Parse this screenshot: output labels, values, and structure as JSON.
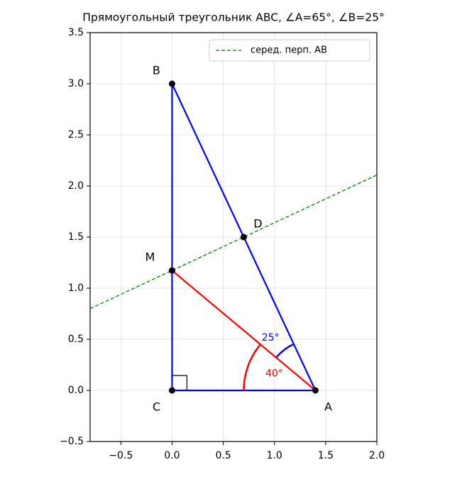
{
  "chart_data": {
    "type": "geometry",
    "title": "Прямоугольный треугольник ABC, ∠A=65°, ∠B=25°",
    "xlim": [
      -0.8,
      2.0
    ],
    "ylim": [
      -0.5,
      3.5
    ],
    "xticks": [
      {
        "value": -0.5,
        "label": "−0.5"
      },
      {
        "value": 0,
        "label": "0.0"
      },
      0.5,
      {
        "value": 1,
        "label": "1.0"
      },
      1.5,
      {
        "value": 2,
        "label": "2.0"
      }
    ],
    "yticks": [
      {
        "value": -0.5,
        "label": "−0.5"
      },
      {
        "value": 0,
        "label": "0.0"
      },
      0.5,
      {
        "value": 1,
        "label": "1.0"
      },
      1.5,
      {
        "value": 2,
        "label": "2.0"
      },
      2.5,
      {
        "value": 3,
        "label": "3.0"
      },
      3.5
    ],
    "grid": true,
    "legend_position": "upper-right",
    "points": {
      "names": [
        "A",
        "B",
        "C",
        "D",
        "M"
      ],
      "x": [
        1.4,
        0,
        0,
        0.7,
        0
      ],
      "y": [
        0,
        3,
        0,
        1.5,
        1.173
      ],
      "color": "#000000"
    },
    "segments": [
      {
        "color": "#0000ff",
        "x": [
          1.4,
          0,
          0,
          1.4
        ],
        "y": [
          0,
          3,
          0,
          0
        ]
      },
      {
        "color": "#ff0000",
        "x": [
          1.4,
          0
        ],
        "y": [
          0,
          1.173
        ]
      }
    ],
    "series": [
      {
        "name": "серед. перп. AB",
        "color": "#008000",
        "dashed": true,
        "x": [
          -0.8,
          2.0
        ],
        "y": [
          0.8,
          2.107
        ]
      }
    ],
    "arcs": [
      {
        "color": "#ff0000",
        "cx": 1.4,
        "cy": 0,
        "r": 0.7,
        "start": 140,
        "end": 180,
        "value": 40,
        "value_label": "40°"
      },
      {
        "color": "#0000ff",
        "cx": 1.4,
        "cy": 0,
        "r": 0.5,
        "start": 115,
        "end": 140,
        "value": 25,
        "value_label": "25°"
      }
    ]
  }
}
